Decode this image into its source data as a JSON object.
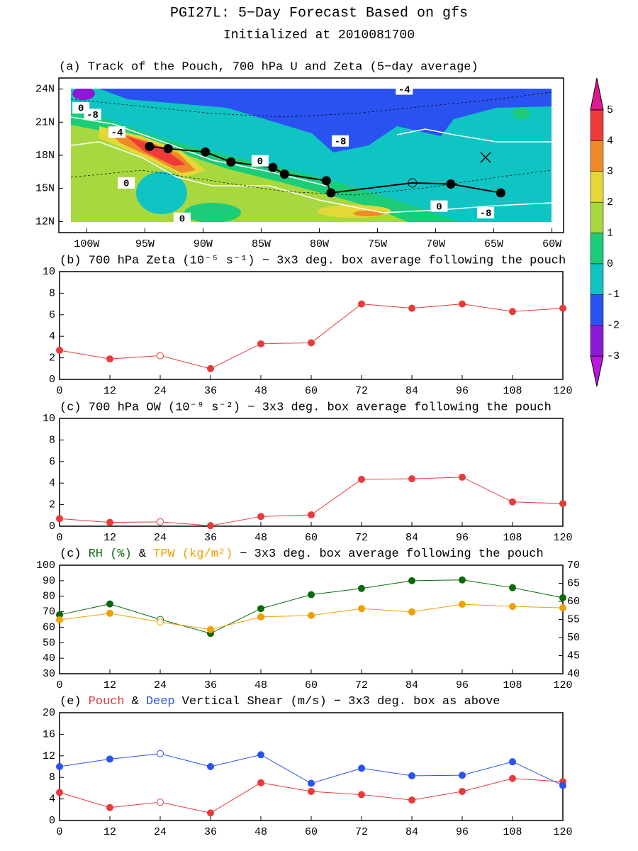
{
  "header": {
    "title": "PGI27L: 5−Day Forecast Based on gfs",
    "subtitle": "Initialized at 2010081700"
  },
  "chart_data": [
    {
      "type": "map",
      "title": "(a) Track of the Pouch, 700 hPa U and Zeta (5−day average)",
      "xlim": [
        -102.4,
        -59
      ],
      "ylim": [
        11,
        25
      ],
      "xticks": [
        {
          "value": -100,
          "label": "100W"
        },
        {
          "value": -95,
          "label": "95W"
        },
        {
          "value": -90,
          "label": "90W"
        },
        {
          "value": -85,
          "label": "85W"
        },
        {
          "value": -80,
          "label": "80W"
        },
        {
          "value": -75,
          "label": "75W"
        },
        {
          "value": -70,
          "label": "70W"
        },
        {
          "value": -65,
          "label": "65W"
        },
        {
          "value": -60,
          "label": "60W"
        }
      ],
      "yticks": [
        {
          "value": 12,
          "label": "12N"
        },
        {
          "value": 15,
          "label": "15N"
        },
        {
          "value": 18,
          "label": "18N"
        },
        {
          "value": 21,
          "label": "21N"
        },
        {
          "value": 24,
          "label": "24N"
        }
      ],
      "track": {
        "color": "#000000",
        "lon": [
          -64.4,
          -68.7,
          -72.0,
          -79.0,
          -79.4,
          -83.0,
          -84.0,
          -87.6,
          -89.8,
          -93.0,
          -94.6
        ],
        "lat": [
          14.6,
          15.4,
          15.5,
          14.6,
          15.7,
          16.3,
          16.9,
          17.4,
          18.3,
          18.6,
          18.8
        ]
      },
      "open_index": 2,
      "contour_labels": [
        {
          "value": -4,
          "lon": -72.7,
          "lat": 24.0
        },
        {
          "value": -8,
          "lon": -99.5,
          "lat": 21.7
        },
        {
          "value": 0,
          "lon": -100.5,
          "lat": 22.3
        },
        {
          "value": -4,
          "lon": -97.4,
          "lat": 20.1
        },
        {
          "value": 0,
          "lon": -96.6,
          "lat": 15.5
        },
        {
          "value": -8,
          "lon": -78.2,
          "lat": 19.3
        },
        {
          "value": 0,
          "lon": -85.1,
          "lat": 17.5
        },
        {
          "value": 0,
          "lon": -91.8,
          "lat": 12.3
        },
        {
          "value": 0,
          "lon": -69.7,
          "lat": 13.4
        },
        {
          "value": -8,
          "lon": -65.7,
          "lat": 12.8
        }
      ],
      "colorbar": {
        "levels": [
          -3,
          -2,
          -1,
          0,
          1,
          2,
          3,
          4,
          5
        ],
        "colors": [
          "#b818d8",
          "#8a1ad8",
          "#2a52f0",
          "#10c4c4",
          "#1ccc78",
          "#a8d840",
          "#e4d838",
          "#f08a28",
          "#f03a3a",
          "#e01890"
        ]
      }
    },
    {
      "type": "line",
      "title": "(b) 700 hPa Zeta (10⁻⁵ s⁻¹) − 3x3 deg. box average following the pouch",
      "x": [
        0,
        12,
        24,
        36,
        48,
        60,
        72,
        84,
        96,
        108,
        120
      ],
      "xlim": [
        0,
        120
      ],
      "xticks": [
        0,
        12,
        24,
        36,
        48,
        60,
        72,
        84,
        96,
        108,
        120
      ],
      "ylim": [
        0,
        10
      ],
      "yticks": [
        0,
        2,
        4,
        6,
        8,
        10
      ],
      "open_index": 2,
      "series": [
        {
          "color": "#e83a3a",
          "values": [
            2.7,
            1.9,
            2.2,
            1.0,
            3.3,
            3.4,
            7.0,
            6.6,
            7.0,
            6.3,
            6.6
          ]
        }
      ]
    },
    {
      "type": "line",
      "title": "(c) 700 hPa OW (10⁻⁹ s⁻²) − 3x3 deg. box average following the pouch",
      "x": [
        0,
        12,
        24,
        36,
        48,
        60,
        72,
        84,
        96,
        108,
        120
      ],
      "xlim": [
        0,
        120
      ],
      "xticks": [
        0,
        12,
        24,
        36,
        48,
        60,
        72,
        84,
        96,
        108,
        120
      ],
      "ylim": [
        0,
        10
      ],
      "yticks": [
        0,
        2,
        4,
        6,
        8,
        10
      ],
      "open_index": 2,
      "series": [
        {
          "color": "#e83a3a",
          "values": [
            0.7,
            0.35,
            0.4,
            0.05,
            0.9,
            1.05,
            4.35,
            4.4,
            4.55,
            2.25,
            2.1
          ]
        }
      ]
    },
    {
      "type": "line",
      "title_prefix": "(c)",
      "title_joiner": "&",
      "title_suffix": "− 3x3 deg. box average following the pouch",
      "x": [
        0,
        12,
        24,
        36,
        48,
        60,
        72,
        84,
        96,
        108,
        120
      ],
      "xlim": [
        0,
        120
      ],
      "xticks": [
        0,
        12,
        24,
        36,
        48,
        60,
        72,
        84,
        96,
        108,
        120
      ],
      "ylim": [
        30,
        100
      ],
      "yticks": [
        30,
        40,
        50,
        60,
        70,
        80,
        90,
        100
      ],
      "y2lim": [
        40,
        70
      ],
      "y2ticks": [
        40,
        45,
        50,
        55,
        60,
        65,
        70
      ],
      "open_index": 2,
      "series": [
        {
          "name": "RH (%)",
          "color": "#0a6a0a",
          "values": [
            68,
            75,
            65,
            56,
            72,
            81,
            85,
            90,
            90.5,
            85.5,
            79
          ]
        },
        {
          "name": "TPW (kg/m²)",
          "color": "#f0a000",
          "axis": "y2",
          "values": [
            54.9,
            56.7,
            54.3,
            52.2,
            55.7,
            56.1,
            58.0,
            57.1,
            59.2,
            58.6,
            58.2
          ]
        }
      ]
    },
    {
      "type": "line",
      "title_prefix": "(e)",
      "title_joiner": "&",
      "title_suffix": "Vertical Shear (m/s) − 3x3 deg. box as above",
      "x": [
        0,
        12,
        24,
        36,
        48,
        60,
        72,
        84,
        96,
        108,
        120
      ],
      "xlim": [
        0,
        120
      ],
      "xticks": [
        0,
        12,
        24,
        36,
        48,
        60,
        72,
        84,
        96,
        108,
        120
      ],
      "ylim": [
        0,
        20
      ],
      "yticks": [
        0,
        4,
        8,
        12,
        16,
        20
      ],
      "open_index": 2,
      "series": [
        {
          "name": "Pouch",
          "color": "#e83a3a",
          "values": [
            5.2,
            2.4,
            3.4,
            1.4,
            7.0,
            5.4,
            4.8,
            3.8,
            5.4,
            7.8,
            7.2
          ]
        },
        {
          "name": "Deep",
          "color": "#2a52f0",
          "values": [
            10.0,
            11.4,
            12.4,
            10.0,
            12.2,
            6.9,
            9.7,
            8.3,
            8.4,
            10.9,
            6.5
          ]
        }
      ]
    }
  ]
}
